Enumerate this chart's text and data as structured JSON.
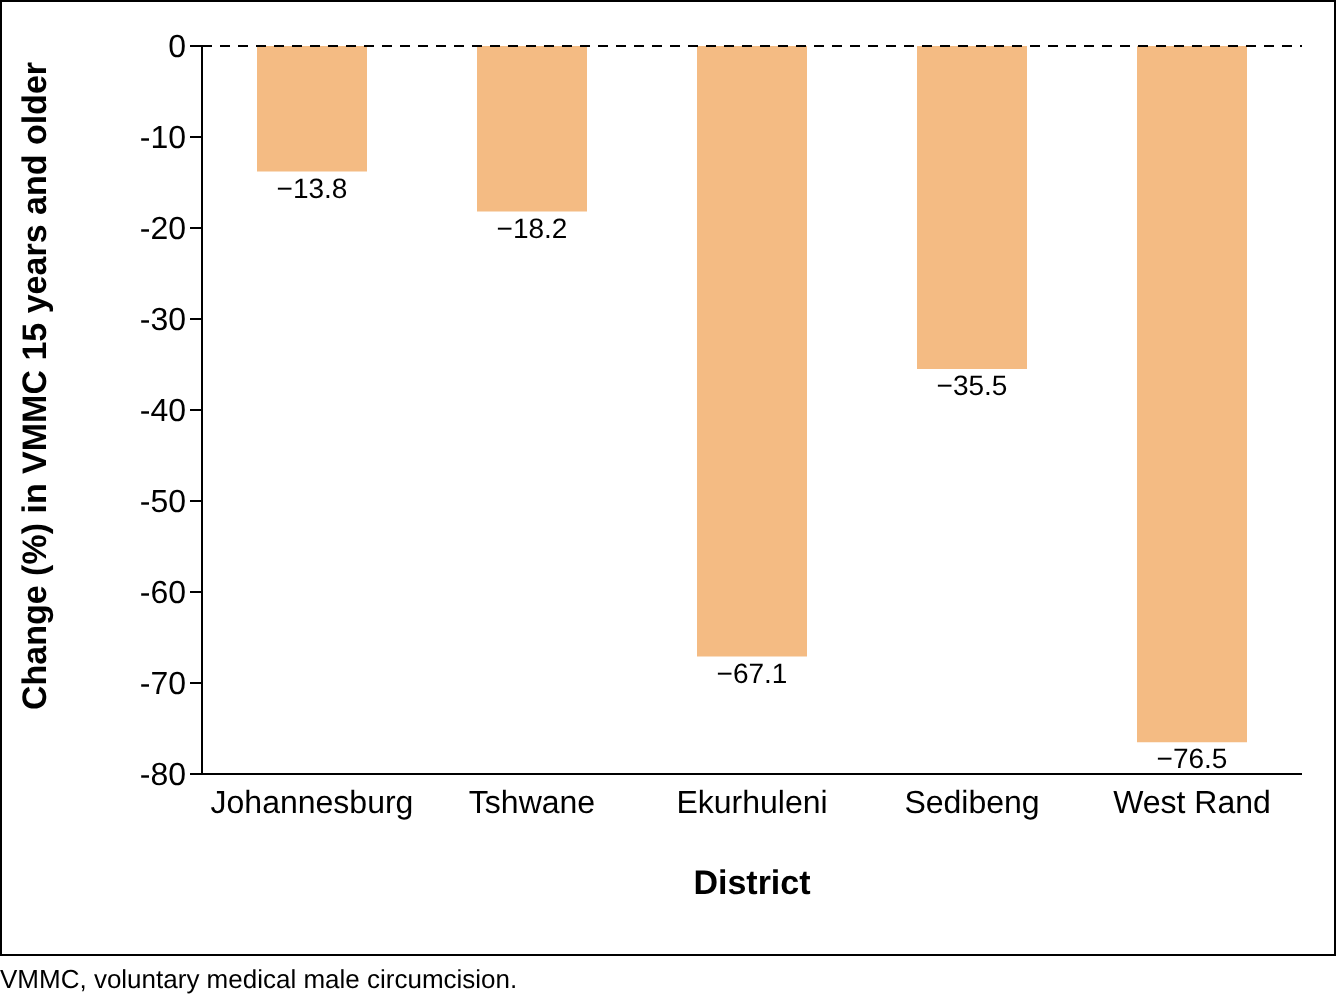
{
  "chart_data": {
    "type": "bar",
    "xlabel": "District",
    "ylabel": "Change (%) in VMMC 15 years and older",
    "categories": [
      "Johannesburg",
      "Tshwane",
      "Ekurhuleni",
      "Sedibeng",
      "West Rand"
    ],
    "values": [
      -13.8,
      -18.2,
      -67.1,
      -35.5,
      -76.5
    ],
    "value_labels": [
      "−13.8",
      "−18.2",
      "−67.1",
      "−35.5",
      "−76.5"
    ],
    "color": "#f4bb83",
    "ylim": [
      -80,
      0
    ],
    "yticks": [
      -80,
      -70,
      -60,
      -50,
      -40,
      -30,
      -20,
      -10,
      0
    ],
    "ref_lines": [
      {
        "axis": "y",
        "value": 0,
        "color": "#000000",
        "line_style": "dashed"
      }
    ],
    "annotations": [
      "VMMC, voluntary medical male circumcision."
    ]
  }
}
